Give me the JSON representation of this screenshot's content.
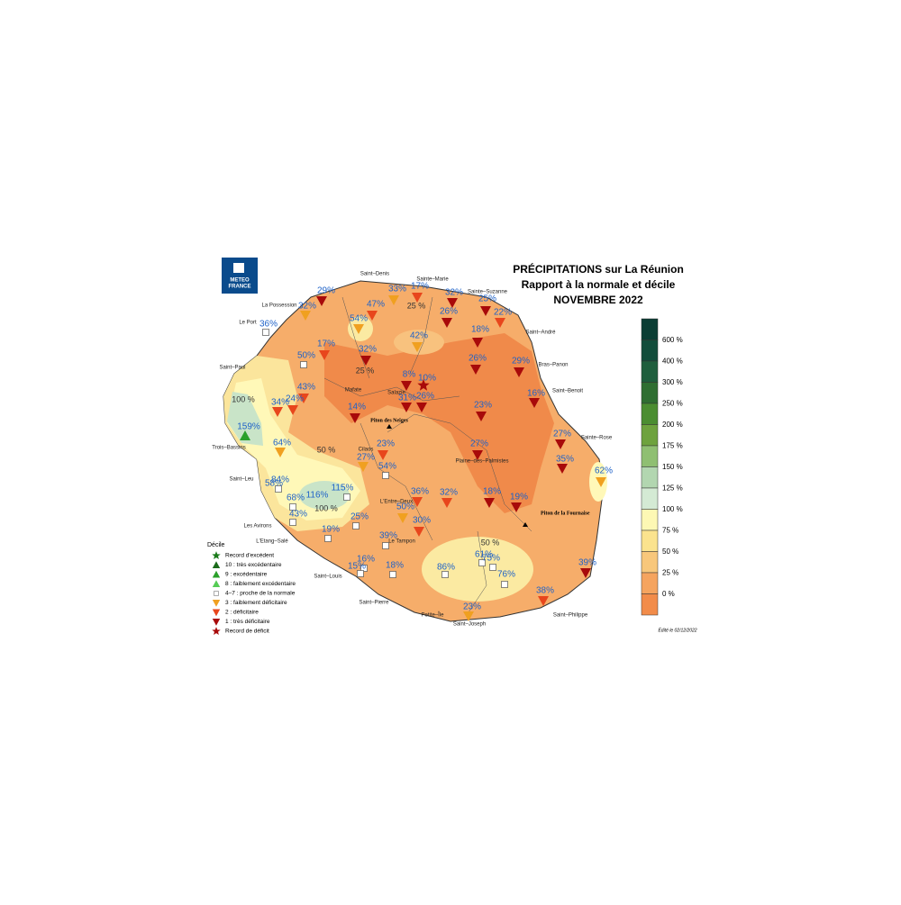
{
  "title": [
    "PRÉCIPITATIONS sur La Réunion",
    "Rapport à la normale et décile",
    "NOVEMBRE 2022"
  ],
  "logo": [
    "METEO",
    "FRANCE"
  ],
  "colorbar": [
    "600 %",
    "400 %",
    "300 %",
    "250 %",
    "200 %",
    "175 %",
    "150 %",
    "125 %",
    "100 %",
    "75 %",
    "50 %",
    "25 %",
    "0 %"
  ],
  "legend": {
    "title": "Décile",
    "items": [
      "Record d'excédent",
      "10 : très excédentaire",
      "9 : excédentaire",
      "8 : faiblement excédentaire",
      "4–7 : proche de la normale",
      "3 : faiblement déficitaire",
      "2 : déficitaire",
      "1 : très déficitaire",
      "Record de déficit"
    ]
  },
  "places": [
    "Saint–Denis",
    "Sainte–Marie",
    "Sainte–Suzanne",
    "La Possession",
    "Le Port",
    "Saint–André",
    "Bras–Panon",
    "Saint–Paul",
    "Saint–Benoit",
    "Mafate",
    "Salazie",
    "Trois–Bassins",
    "Sainte–Rose",
    "Cilaos",
    "Plaine–des–Palmistes",
    "Saint–Leu",
    "L'Entre–Deux",
    "Les Avirons",
    "L'Etang–Salé",
    "Le Tampon",
    "Saint–Louis",
    "Saint–Pierre",
    "Petite–Île",
    "Saint–Joseph",
    "Saint–Philippe"
  ],
  "summits": [
    "Piton des Neiges",
    "Piton de la Fournaise"
  ],
  "contours": [
    "25 %",
    "25 %",
    "50 %",
    "100 %",
    "100 %",
    "50 %"
  ],
  "stations": [
    "29%",
    "32%",
    "33%",
    "17%",
    "32%",
    "25%",
    "22%",
    "47%",
    "54%",
    "26%",
    "36%",
    "42%",
    "18%",
    "17%",
    "32%",
    "50%",
    "26%",
    "29%",
    "8%",
    "10%",
    "43%",
    "31%",
    "26%",
    "16%",
    "34%",
    "24%",
    "14%",
    "23%",
    "159%",
    "64%",
    "27%",
    "23%",
    "27%",
    "27%",
    "35%",
    "54%",
    "62%",
    "84%",
    "58%",
    "115%",
    "116%",
    "36%",
    "32%",
    "18%",
    "19%",
    "68%",
    "50%",
    "43%",
    "30%",
    "25%",
    "19%",
    "39%",
    "16%",
    "15%",
    "18%",
    "86%",
    "61%",
    "75%",
    "76%",
    "39%",
    "38%",
    "23%"
  ],
  "footer": "Édité le 02/12/2022"
}
